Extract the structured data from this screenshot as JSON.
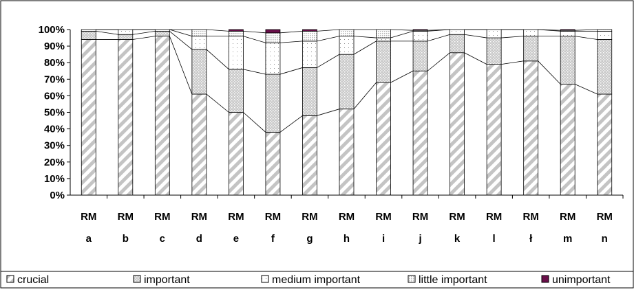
{
  "chart_data": {
    "type": "bar",
    "stacked": "percent",
    "categories": [
      [
        "RM",
        "a"
      ],
      [
        "RM",
        "b"
      ],
      [
        "RM",
        "c"
      ],
      [
        "RM",
        "d"
      ],
      [
        "RM",
        "e"
      ],
      [
        "RM",
        "f"
      ],
      [
        "RM",
        "g"
      ],
      [
        "RM",
        "h"
      ],
      [
        "RM",
        "i"
      ],
      [
        "RM",
        "j"
      ],
      [
        "RM",
        "k"
      ],
      [
        "RM",
        "l"
      ],
      [
        "RM",
        "ł"
      ],
      [
        "RM",
        "m"
      ],
      [
        "RM",
        "n"
      ]
    ],
    "series": [
      {
        "name": "crucial",
        "pattern": "diagonal",
        "color": "#c8c8c8",
        "values": [
          94,
          94,
          96,
          61,
          50,
          38,
          48,
          52,
          68,
          75,
          86,
          79,
          81,
          67,
          61
        ]
      },
      {
        "name": "important",
        "pattern": "dots",
        "color": "#bfbfbf",
        "values": [
          5,
          3,
          3,
          27,
          26,
          35,
          29,
          33,
          25,
          18,
          11,
          16,
          15,
          29,
          33
        ]
      },
      {
        "name": "medium important",
        "pattern": "sparse-dots",
        "color": "#ffffff",
        "values": [
          1,
          3,
          1,
          8,
          20,
          19,
          16,
          11,
          2,
          6,
          3,
          5,
          4,
          3,
          5
        ]
      },
      {
        "name": "little important",
        "pattern": "light-dots",
        "color": "#e0e0e0",
        "values": [
          0,
          0,
          0,
          4,
          3,
          6,
          6,
          4,
          5,
          0.5,
          0,
          0,
          0,
          0.5,
          1
        ]
      },
      {
        "name": "unimportant",
        "pattern": "solid",
        "color": "#6a0f4a",
        "values": [
          0,
          0,
          0,
          0,
          1,
          2,
          1,
          0,
          0,
          0.5,
          0,
          0,
          0,
          0.5,
          0
        ]
      }
    ],
    "y_ticks": [
      "0%",
      "10%",
      "20%",
      "30%",
      "40%",
      "50%",
      "60%",
      "70%",
      "80%",
      "90%",
      "100%"
    ],
    "ylim": [
      0,
      100
    ],
    "series_lines": true,
    "legend_position": "bottom"
  }
}
